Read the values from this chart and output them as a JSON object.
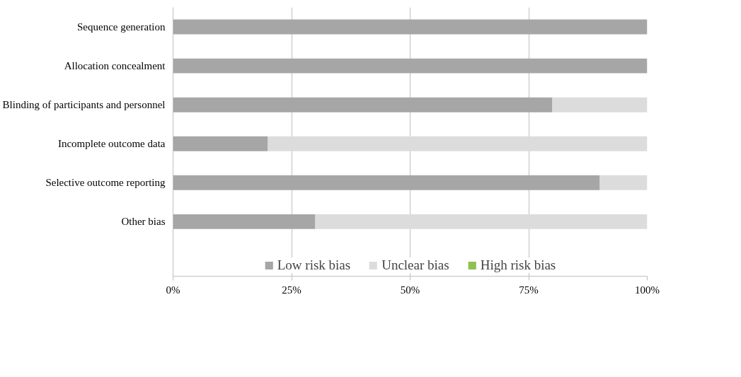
{
  "chart_data": {
    "type": "bar",
    "orientation": "horizontal",
    "stacked": true,
    "categories": [
      "Sequence generation",
      "Allocation concealment",
      "Blinding of participants and personnel",
      "Incomplete outcome data",
      "Selective outcome reporting",
      "Other bias"
    ],
    "series": [
      {
        "name": "Low risk bias",
        "color": "#a6a6a6",
        "values": [
          100,
          100,
          80,
          20,
          90,
          30
        ]
      },
      {
        "name": "Unclear bias",
        "color": "#dcdcdc",
        "values": [
          0,
          0,
          20,
          80,
          10,
          70
        ]
      },
      {
        "name": "High risk bias",
        "color": "#92c050",
        "values": [
          0,
          0,
          0,
          0,
          0,
          0
        ]
      }
    ],
    "xlim": [
      0,
      100
    ],
    "xticks": [
      {
        "value": 0,
        "label": "0%"
      },
      {
        "value": 25,
        "label": "25%"
      },
      {
        "value": 50,
        "label": "50%"
      },
      {
        "value": 75,
        "label": "75%"
      },
      {
        "value": 100,
        "label": "100%"
      }
    ],
    "grid": "x",
    "legend": "bottom"
  }
}
